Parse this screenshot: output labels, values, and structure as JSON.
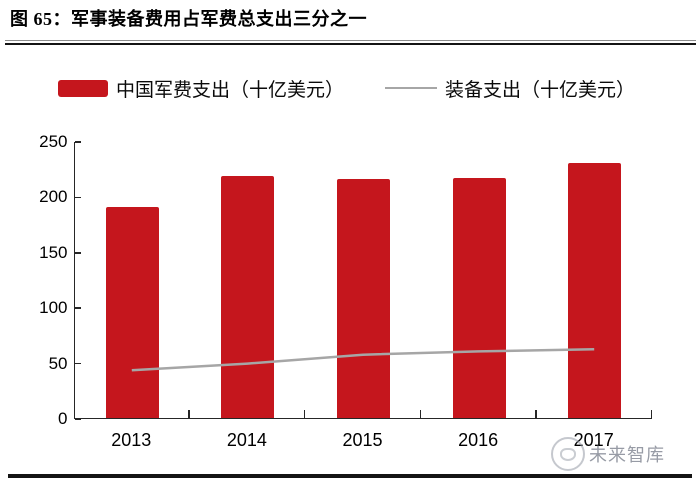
{
  "figure": {
    "title": "图 65：军事装备费用占军费总支出三分之一",
    "watermark": "未来智库"
  },
  "chart_data": {
    "type": "bar",
    "title": "图 65：军事装备费用占军费总支出三分之一",
    "categories": [
      "2013",
      "2014",
      "2015",
      "2016",
      "2017"
    ],
    "series": [
      {
        "name": "中国军费支出（十亿美元）",
        "type": "bar",
        "color": "#c5161d",
        "values": [
          190,
          218,
          216,
          217,
          230
        ]
      },
      {
        "name": "装备支出（十亿美元）",
        "type": "line",
        "color": "#a6a6a6",
        "values": [
          44,
          50,
          58,
          61,
          63
        ]
      }
    ],
    "xlabel": "",
    "ylabel": "",
    "ylim": [
      0,
      250
    ],
    "yticks": [
      0,
      50,
      100,
      150,
      200,
      250
    ],
    "grid": false,
    "legend_position": "top",
    "axis_color": "#262626"
  }
}
